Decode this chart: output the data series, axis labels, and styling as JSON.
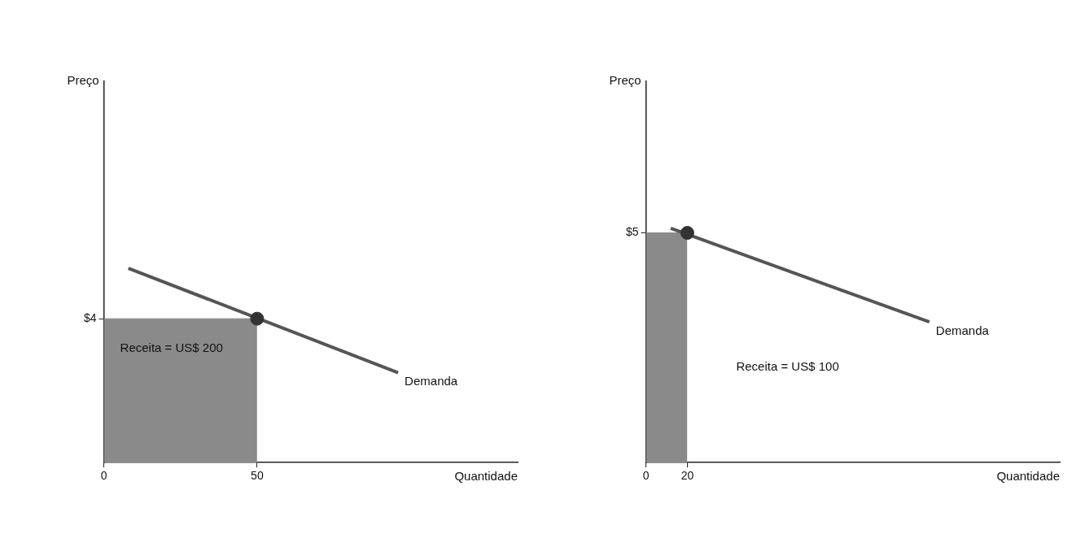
{
  "chart_data": [
    {
      "type": "line",
      "xlabel": "Quantidade",
      "ylabel": "Preço",
      "xlim": [
        0,
        135
      ],
      "ylim": [
        0,
        10.6
      ],
      "xticks": [
        0,
        50
      ],
      "yticks": [
        {
          "value": 4,
          "label": "$4"
        }
      ],
      "grid": false,
      "legend": false,
      "series": [
        {
          "type": "area",
          "color": "#8a8a8a",
          "x": [
            0,
            50
          ],
          "values": [
            4,
            4
          ]
        },
        {
          "type": "line",
          "name": "Demanda",
          "color": "#555555",
          "marker": "none",
          "x": [
            8,
            96
          ],
          "values": [
            5.4,
            2.5
          ]
        },
        {
          "type": "scatter",
          "color": "#333333",
          "marker": "circle",
          "x": [
            50
          ],
          "values": [
            4
          ]
        }
      ],
      "annotations": [
        "Receita = US$ 200"
      ]
    },
    {
      "type": "line",
      "xlabel": "Quantidade",
      "ylabel": "Preço",
      "xlim": [
        0,
        200
      ],
      "ylim": [
        0,
        8.3
      ],
      "xticks": [
        0,
        20
      ],
      "yticks": [
        {
          "value": 5,
          "label": "$5"
        }
      ],
      "grid": false,
      "legend": false,
      "series": [
        {
          "type": "area",
          "color": "#8a8a8a",
          "x": [
            0,
            20
          ],
          "values": [
            5,
            5
          ]
        },
        {
          "type": "line",
          "name": "Demanda",
          "color": "#555555",
          "marker": "none",
          "x": [
            12,
            137
          ],
          "values": [
            5.1,
            3.06
          ]
        },
        {
          "type": "scatter",
          "color": "#333333",
          "marker": "circle",
          "x": [
            20
          ],
          "values": [
            5
          ]
        }
      ],
      "annotations": [
        "Receita = US$ 100"
      ]
    }
  ]
}
